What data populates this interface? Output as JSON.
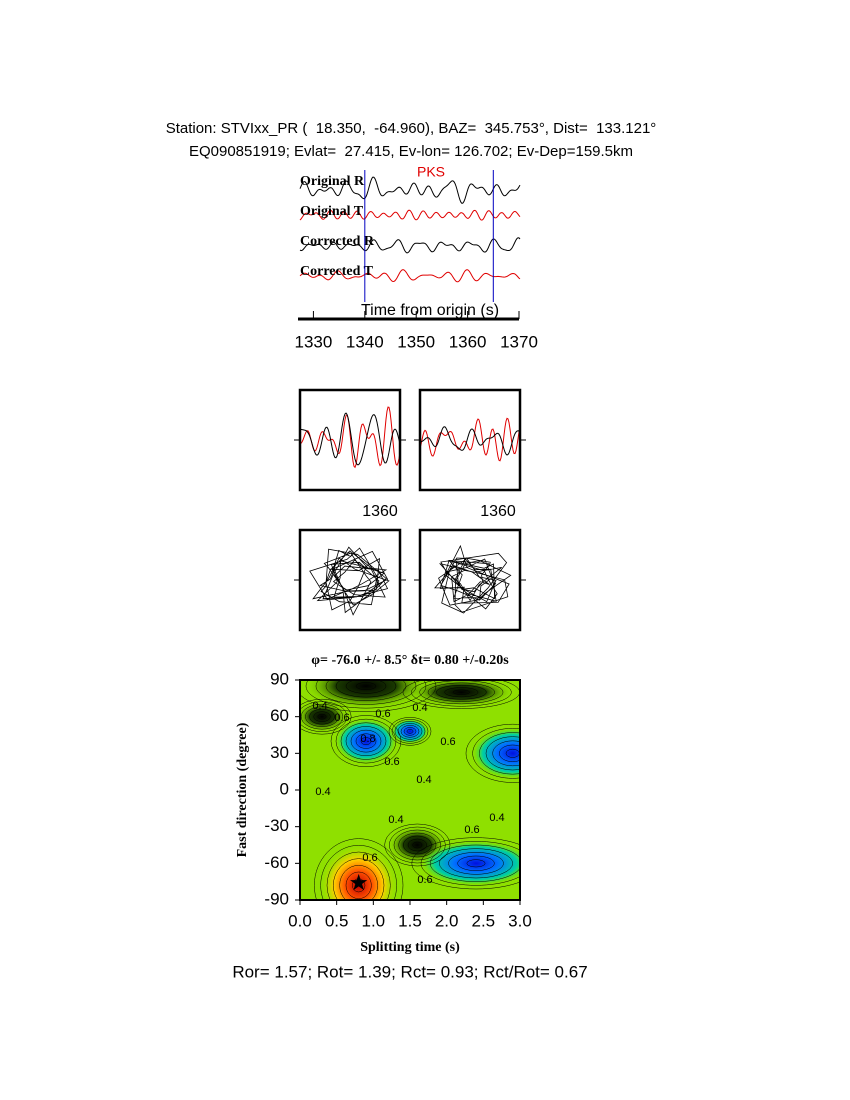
{
  "header": {
    "line1": "Station: STVIxx_PR (  18.350,  -64.960), BAZ=  345.753°, Dist=  133.121°",
    "line2": "EQ090851919; Evlat=  27.415, Ev-lon= 126.702; Ev-Dep=159.5km"
  },
  "traces": {
    "labels": [
      "Original R",
      "Original T",
      "Corrected R",
      "Corrected T"
    ],
    "phase": "PKS",
    "xlabel": "Time from origin (s)",
    "xlim": [
      1327,
      1370
    ],
    "xticks": [
      1330,
      1340,
      1350,
      1360,
      1370
    ],
    "markers": [
      1340,
      1365
    ]
  },
  "particle_motion": {
    "tick_labels": [
      "1360",
      "1360"
    ]
  },
  "grid_search": {
    "title": "φ= -76.0 +/- 8.5° δt= 0.80 +/-0.20s",
    "xlabel": "Splitting time (s)",
    "ylabel": "Fast direction (degree)",
    "xlim": [
      0,
      3
    ],
    "ylim": [
      -90,
      90
    ],
    "xticks": [
      {
        "value": 0,
        "label": "0.0"
      },
      {
        "value": 0.5,
        "label": "0.5"
      },
      {
        "value": 1,
        "label": "1.0"
      },
      {
        "value": 1.5,
        "label": "1.5"
      },
      {
        "value": 2,
        "label": "2.0"
      },
      {
        "value": 2.5,
        "label": "2.5"
      },
      {
        "value": 3,
        "label": "3.0"
      }
    ],
    "yticks": [
      90,
      60,
      30,
      0,
      -30,
      -60,
      -90
    ],
    "best": {
      "dt": 0.8,
      "phi": -76
    },
    "contour_labels": [
      "0.4",
      "0.6",
      "0.6",
      "0.4",
      "0.8",
      "0.6",
      "0.6",
      "0.4",
      "0.4",
      "0.4",
      "0.6",
      "0.4",
      "0.6",
      "0.6"
    ]
  },
  "footer": "Ror= 1.57; Rot= 1.39; Rct= 0.93; Rct/Rot= 0.67"
}
